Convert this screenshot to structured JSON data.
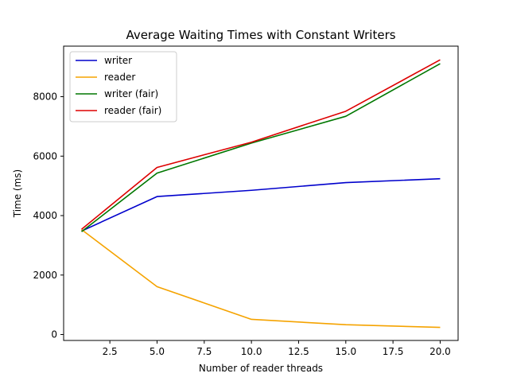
{
  "chart_data": {
    "type": "line",
    "title": "Average Waiting Times with Constant Writers",
    "xlabel": "Number of reader threads",
    "ylabel": "Time (ms)",
    "x": [
      1,
      5,
      10,
      15,
      20
    ],
    "xlim": [
      0.05,
      20.95
    ],
    "ylim": [
      -200,
      9700
    ],
    "xticks": [
      2.5,
      5.0,
      7.5,
      10.0,
      12.5,
      15.0,
      17.5,
      20.0
    ],
    "xtick_labels": [
      "2.5",
      "5.0",
      "7.5",
      "10.0",
      "12.5",
      "15.0",
      "17.5",
      "20.0"
    ],
    "yticks": [
      0,
      2000,
      4000,
      6000,
      8000
    ],
    "ytick_labels": [
      "0",
      "2000",
      "4000",
      "6000",
      "8000"
    ],
    "grid": false,
    "legend_position": "top-left",
    "series": [
      {
        "name": "writer",
        "color": "#0000cc",
        "values": [
          3480,
          4640,
          4850,
          5110,
          5240
        ]
      },
      {
        "name": "reader",
        "color": "#f5a300",
        "values": [
          3530,
          1610,
          510,
          330,
          240
        ]
      },
      {
        "name": "writer (fair)",
        "color": "#007700",
        "values": [
          3460,
          5430,
          6440,
          7340,
          9110
        ]
      },
      {
        "name": "reader (fair)",
        "color": "#dd0000",
        "values": [
          3540,
          5620,
          6470,
          7510,
          9240
        ]
      }
    ]
  }
}
